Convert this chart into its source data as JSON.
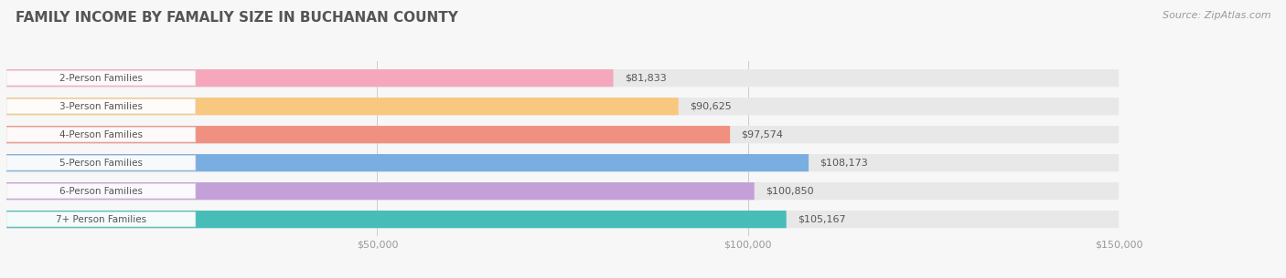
{
  "title": "FAMILY INCOME BY FAMALIY SIZE IN BUCHANAN COUNTY",
  "source": "Source: ZipAtlas.com",
  "categories": [
    "2-Person Families",
    "3-Person Families",
    "4-Person Families",
    "5-Person Families",
    "6-Person Families",
    "7+ Person Families"
  ],
  "values": [
    81833,
    90625,
    97574,
    108173,
    100850,
    105167
  ],
  "bar_colors": [
    "#f5a8bc",
    "#f9c880",
    "#f09080",
    "#7aaee0",
    "#c4a0d8",
    "#48bdb8"
  ],
  "value_labels": [
    "$81,833",
    "$90,625",
    "$97,574",
    "$108,173",
    "$100,850",
    "$105,167"
  ],
  "x_ticks": [
    50000,
    100000,
    150000
  ],
  "x_tick_labels": [
    "$50,000",
    "$100,000",
    "$150,000"
  ],
  "xlim_max": 150000,
  "background_color": "#f7f7f7",
  "bar_bg_color": "#e8e8e8",
  "title_fontsize": 11,
  "source_fontsize": 8,
  "bar_fontsize": 7.5,
  "value_fontsize": 8
}
